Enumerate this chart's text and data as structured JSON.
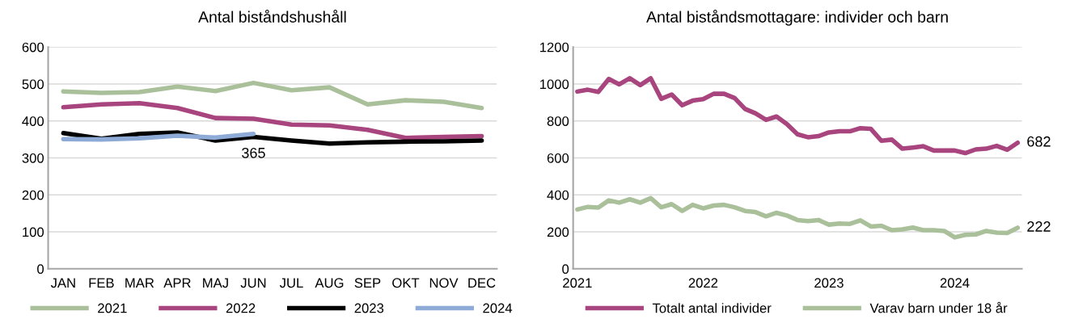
{
  "chart_data": [
    {
      "type": "line",
      "title": "Antal biståndshushåll",
      "categories": [
        "JAN",
        "FEB",
        "MAR",
        "APR",
        "MAJ",
        "JUN",
        "JUL",
        "AUG",
        "SEP",
        "OKT",
        "NOV",
        "DEC"
      ],
      "ylim": [
        0,
        600
      ],
      "yticks": [
        0,
        100,
        200,
        300,
        400,
        500,
        600
      ],
      "grid": "y",
      "legend": "bottom",
      "marker": "none",
      "line_style": "solid",
      "series": [
        {
          "name": "2021",
          "color": "#a9c09a",
          "values": [
            480,
            476,
            478,
            493,
            481,
            503,
            483,
            491,
            445,
            456,
            452,
            435
          ]
        },
        {
          "name": "2022",
          "color": "#a8447e",
          "values": [
            437,
            445,
            448,
            435,
            408,
            406,
            390,
            388,
            376,
            354,
            357,
            359
          ]
        },
        {
          "name": "2023",
          "color": "#000000",
          "values": [
            367,
            352,
            365,
            369,
            347,
            357,
            347,
            339,
            342,
            344,
            345,
            347
          ]
        },
        {
          "name": "2024",
          "color": "#8eaad6",
          "values": [
            351,
            350,
            353,
            360,
            355,
            365,
            null,
            null,
            null,
            null,
            null,
            null
          ],
          "value_labels": [
            null,
            null,
            null,
            null,
            null,
            "365",
            null,
            null,
            null,
            null,
            null,
            null
          ]
        }
      ]
    },
    {
      "type": "line",
      "title": "Antal biståndsmottagare: individer och barn",
      "categories": [
        "2021",
        null,
        null,
        null,
        null,
        null,
        null,
        null,
        null,
        null,
        null,
        null,
        "2022",
        null,
        null,
        null,
        null,
        null,
        null,
        null,
        null,
        null,
        null,
        null,
        "2023",
        null,
        null,
        null,
        null,
        null,
        null,
        null,
        null,
        null,
        null,
        null,
        "2024",
        null,
        null,
        null,
        null,
        null,
        null
      ],
      "ylim": [
        0,
        1200
      ],
      "yticks": [
        0,
        200,
        400,
        600,
        800,
        1000,
        1200
      ],
      "grid": "y",
      "legend": "bottom",
      "marker": "none",
      "line_style": "solid",
      "series": [
        {
          "name": "Totalt antal individer",
          "color": "#a8447e",
          "values": [
            959,
            969,
            957,
            1027,
            998,
            1031,
            994,
            1031,
            920,
            943,
            885,
            910,
            918,
            947,
            947,
            924,
            865,
            841,
            806,
            824,
            783,
            728,
            712,
            718,
            738,
            744,
            744,
            761,
            757,
            693,
            699,
            650,
            656,
            663,
            640,
            640,
            640,
            626,
            646,
            650,
            665,
            644,
            682
          ],
          "value_labels": [
            null,
            null,
            null,
            null,
            null,
            null,
            null,
            null,
            null,
            null,
            null,
            null,
            null,
            null,
            null,
            null,
            null,
            null,
            null,
            null,
            null,
            null,
            null,
            null,
            null,
            null,
            null,
            null,
            null,
            null,
            null,
            null,
            null,
            null,
            null,
            null,
            null,
            null,
            null,
            null,
            null,
            null,
            "682"
          ]
        },
        {
          "name": "Varav barn under 18 år",
          "color": "#a9c09a",
          "values": [
            321,
            335,
            331,
            370,
            358,
            376,
            358,
            382,
            333,
            350,
            313,
            346,
            327,
            342,
            346,
            333,
            313,
            307,
            284,
            303,
            288,
            264,
            258,
            264,
            239,
            245,
            243,
            262,
            229,
            233,
            209,
            213,
            223,
            209,
            209,
            205,
            170,
            184,
            186,
            205,
            196,
            194,
            222
          ],
          "value_labels": [
            null,
            null,
            null,
            null,
            null,
            null,
            null,
            null,
            null,
            null,
            null,
            null,
            null,
            null,
            null,
            null,
            null,
            null,
            null,
            null,
            null,
            null,
            null,
            null,
            null,
            null,
            null,
            null,
            null,
            null,
            null,
            null,
            null,
            null,
            null,
            null,
            null,
            null,
            null,
            null,
            null,
            null,
            "222"
          ]
        }
      ]
    }
  ]
}
